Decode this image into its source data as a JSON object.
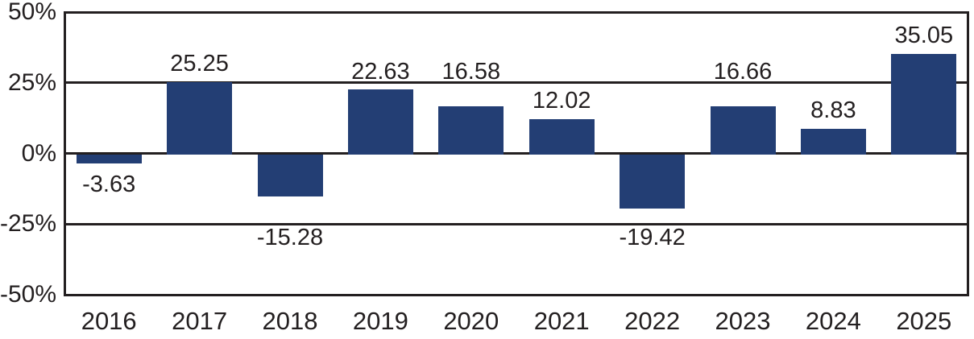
{
  "chart_data": {
    "type": "bar",
    "title": "",
    "xlabel": "",
    "ylabel": "",
    "categories": [
      "2016",
      "2017",
      "2018",
      "2019",
      "2020",
      "2021",
      "2022",
      "2023",
      "2024",
      "2025"
    ],
    "values": [
      -3.63,
      25.25,
      -15.28,
      22.63,
      16.58,
      12.02,
      -19.42,
      16.66,
      8.83,
      35.05
    ],
    "value_labels": [
      "-3.63",
      "25.25",
      "-15.28",
      "22.63",
      "16.58",
      "12.02",
      "-19.42",
      "16.66",
      "8.83",
      "35.05"
    ],
    "ylim": [
      -50,
      50
    ],
    "yticks": [
      {
        "value": 50,
        "label": "50%"
      },
      {
        "value": 25,
        "label": "25%"
      },
      {
        "value": 0,
        "label": "0%"
      },
      {
        "value": -25,
        "label": "-25%"
      },
      {
        "value": -50,
        "label": "-50%"
      }
    ],
    "grid": true,
    "legend": null,
    "colors": {
      "bar": "#233e74",
      "axis": "#231f20",
      "text": "#231f20",
      "background": "#ffffff"
    }
  }
}
